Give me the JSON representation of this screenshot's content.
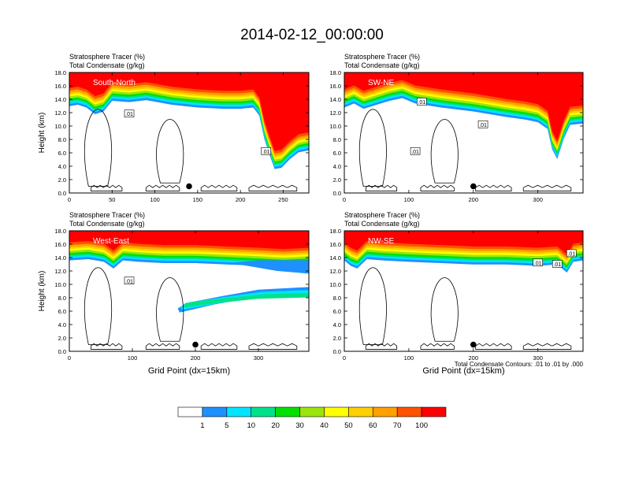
{
  "page_title": "2014-02-12_00:00:00",
  "chart_data": {
    "type": "heatmap",
    "title": "2014-02-12_00:00:00",
    "colors": {
      "tracer_bins": [
        "#ffffff",
        "#1e90ff",
        "#00e5ff",
        "#00e28a",
        "#00e000",
        "#9ae60a",
        "#ffff00",
        "#ffd000",
        "#ffa000",
        "#ff5200",
        "#ff0000"
      ],
      "contour": "#000000",
      "marker": "#000000"
    },
    "colorbar": {
      "labels": [
        "1",
        "5",
        "10",
        "20",
        "30",
        "40",
        "50",
        "60",
        "70",
        "100"
      ]
    },
    "footnote": "Total Condensate Contours: .01 to .01 by .000",
    "panels": [
      {
        "id": "south-north",
        "line1": "Stratosphere Tracer   (%)",
        "line2": "Total Condensate   (g/kg)",
        "label": "South-North",
        "ylabel": "Height (km)",
        "xlabel": "",
        "xlim": [
          0,
          280
        ],
        "ylim": [
          0,
          18
        ],
        "xticks": [
          0,
          50,
          100,
          150,
          200,
          250
        ],
        "yticks": [
          "0.0",
          "2.0",
          "4.0",
          "6.0",
          "8.0",
          "10.0",
          "12.0",
          "14.0",
          "16.0",
          "18.0"
        ],
        "marker": [
          140,
          1.0
        ],
        "tracer_top": [
          [
            0,
            14.4
          ],
          [
            10,
            14.6
          ],
          [
            20,
            14.2
          ],
          [
            30,
            13.2
          ],
          [
            40,
            13.6
          ],
          [
            50,
            15.2
          ],
          [
            70,
            15.0
          ],
          [
            90,
            15.3
          ],
          [
            120,
            14.6
          ],
          [
            150,
            14.2
          ],
          [
            180,
            14.0
          ],
          [
            200,
            14.0
          ],
          [
            215,
            14.2
          ],
          [
            222,
            13.0
          ],
          [
            228,
            9.5
          ],
          [
            233,
            7.5
          ],
          [
            240,
            5.0
          ],
          [
            248,
            5.2
          ],
          [
            258,
            6.5
          ],
          [
            268,
            7.5
          ],
          [
            280,
            7.8
          ]
        ],
        "contour_labels": [
          [
            70,
            11.8,
            ".01"
          ],
          [
            230,
            6.2,
            ".01"
          ]
        ]
      },
      {
        "id": "sw-ne",
        "line1": "Stratosphere Tracer   (%)",
        "line2": "Total Condensate   (g/kg)",
        "label": "SW-NE",
        "ylabel": "",
        "xlabel": "",
        "xlim": [
          0,
          370
        ],
        "ylim": [
          0,
          18
        ],
        "xticks": [
          0,
          100,
          200,
          300
        ],
        "yticks": [
          "0.0",
          "2.0",
          "4.0",
          "6.0",
          "8.0",
          "10.0",
          "12.0",
          "14.0",
          "16.0",
          "18.0"
        ],
        "marker": [
          200,
          1.0
        ],
        "tracer_top": [
          [
            0,
            14.2
          ],
          [
            15,
            14.8
          ],
          [
            30,
            14.0
          ],
          [
            50,
            14.6
          ],
          [
            70,
            15.2
          ],
          [
            90,
            15.6
          ],
          [
            110,
            14.8
          ],
          [
            150,
            14.2
          ],
          [
            200,
            13.6
          ],
          [
            250,
            12.8
          ],
          [
            280,
            12.4
          ],
          [
            300,
            12.0
          ],
          [
            315,
            11.0
          ],
          [
            322,
            8.0
          ],
          [
            330,
            6.5
          ],
          [
            340,
            9.5
          ],
          [
            350,
            11.6
          ],
          [
            370,
            11.8
          ]
        ],
        "contour_labels": [
          [
            120,
            13.6,
            ".01"
          ],
          [
            215,
            10.2,
            ".01"
          ],
          [
            110,
            6.2,
            ".01"
          ]
        ]
      },
      {
        "id": "west-east",
        "line1": "Stratosphere Tracer   (%)",
        "line2": "Total Condensate   (g/kg)",
        "label": "West-East",
        "ylabel": "Height (km)",
        "xlabel": "Grid Point (dx=15km)",
        "xlim": [
          0,
          380
        ],
        "ylim": [
          0,
          18
        ],
        "xticks": [
          0,
          100,
          200,
          300
        ],
        "yticks": [
          "0.0",
          "2.0",
          "4.0",
          "6.0",
          "8.0",
          "10.0",
          "12.0",
          "14.0",
          "16.0",
          "18.0"
        ],
        "marker": [
          200,
          1.0
        ],
        "tracer_top": [
          [
            0,
            15.0
          ],
          [
            30,
            15.2
          ],
          [
            55,
            14.8
          ],
          [
            70,
            13.8
          ],
          [
            85,
            15.0
          ],
          [
            110,
            14.8
          ],
          [
            150,
            14.6
          ],
          [
            200,
            14.6
          ],
          [
            250,
            14.4
          ],
          [
            300,
            14.2
          ],
          [
            340,
            14.0
          ],
          [
            380,
            14.2
          ]
        ],
        "contour_labels": [
          [
            95,
            10.5,
            ".01"
          ]
        ]
      },
      {
        "id": "nw-se",
        "line1": "Stratosphere Tracer   (%)",
        "line2": "Total Condensate   (g/kg)",
        "label": "NW-SE",
        "ylabel": "",
        "xlabel": "Grid Point (dx=15km)",
        "xlim": [
          0,
          370
        ],
        "ylim": [
          0,
          18
        ],
        "xticks": [
          0,
          100,
          200,
          300
        ],
        "yticks": [
          "0.0",
          "2.0",
          "4.0",
          "6.0",
          "8.0",
          "10.0",
          "12.0",
          "14.0",
          "16.0",
          "18.0"
        ],
        "marker": [
          200,
          1.0
        ],
        "tracer_top": [
          [
            0,
            15.0
          ],
          [
            10,
            14.2
          ],
          [
            20,
            13.8
          ],
          [
            35,
            15.2
          ],
          [
            60,
            15.0
          ],
          [
            100,
            14.8
          ],
          [
            150,
            14.6
          ],
          [
            200,
            14.4
          ],
          [
            250,
            14.4
          ],
          [
            300,
            14.2
          ],
          [
            330,
            14.4
          ],
          [
            345,
            13.2
          ],
          [
            355,
            14.8
          ],
          [
            370,
            15.0
          ]
        ],
        "contour_labels": [
          [
            300,
            13.2,
            ".01"
          ],
          [
            330,
            13.0,
            ".01"
          ],
          [
            352,
            14.6,
            ".01"
          ]
        ]
      }
    ]
  }
}
